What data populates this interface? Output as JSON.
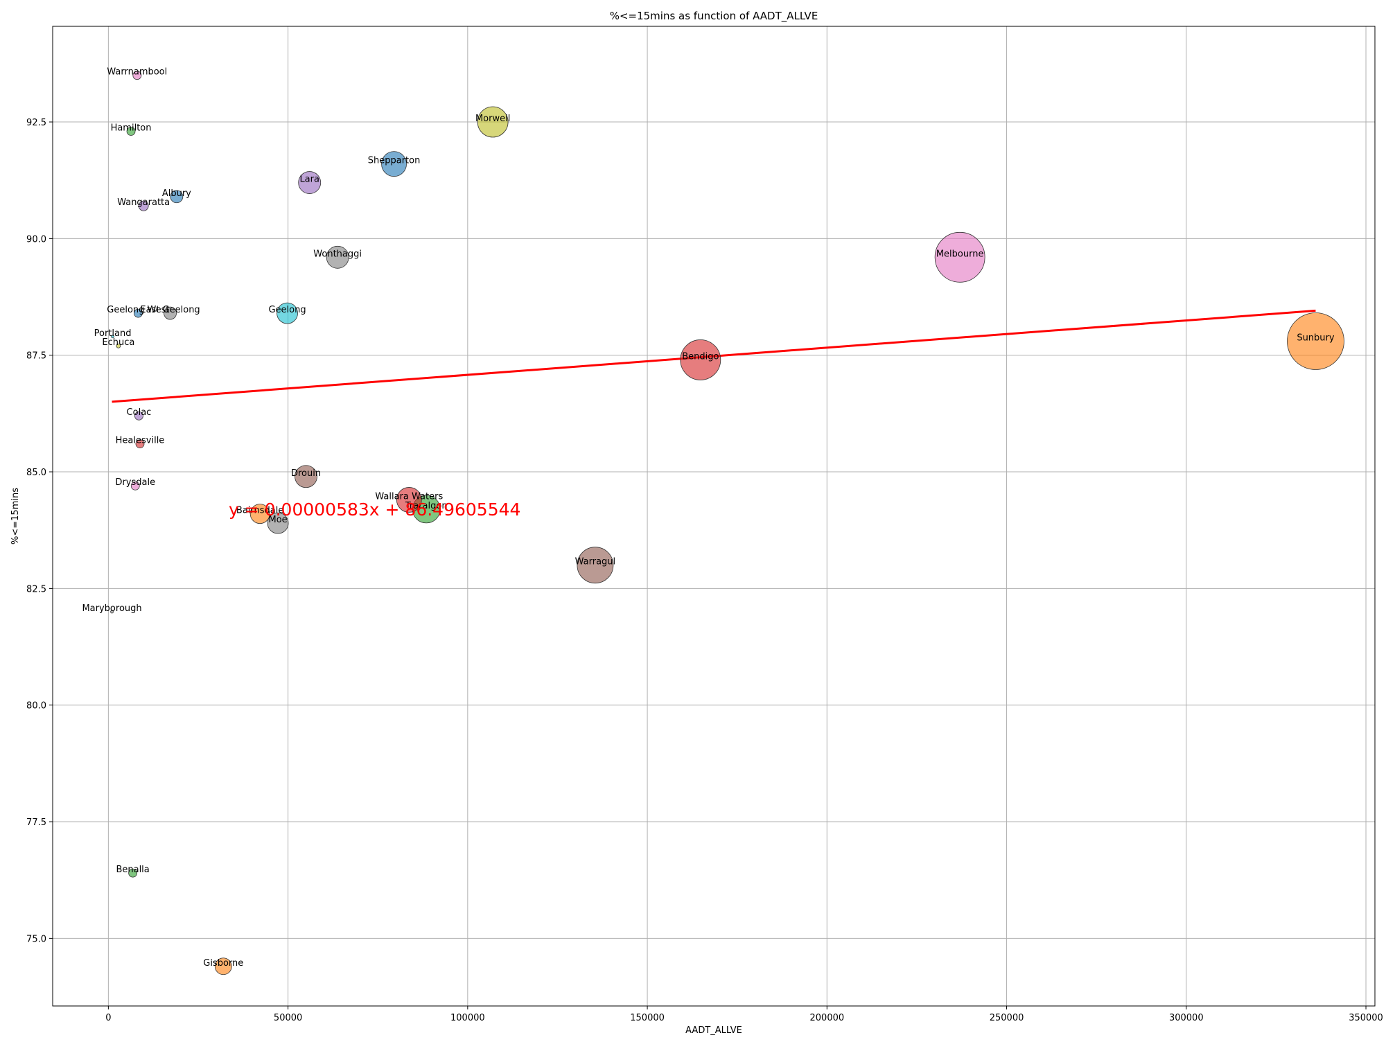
{
  "chart_data": {
    "type": "scatter",
    "title": "%<=15mins as function of AADT_ALLVE",
    "xlabel": "AADT_ALLVE",
    "ylabel": "%<=15mins",
    "xlim": [
      -15500,
      352500
    ],
    "ylim": [
      73.55,
      94.55
    ],
    "xticks": [
      0,
      50000,
      100000,
      150000,
      200000,
      250000,
      300000,
      350000
    ],
    "yticks": [
      75.0,
      77.5,
      80.0,
      82.5,
      85.0,
      87.5,
      90.0,
      92.5
    ],
    "grid": true,
    "points": [
      {
        "label": "Warrnambool",
        "x": 8000,
        "y": 93.5,
        "size": 6,
        "color": "#e377c2"
      },
      {
        "label": "Hamilton",
        "x": 6300,
        "y": 92.3,
        "size": 6,
        "color": "#2ca02c"
      },
      {
        "label": "Morwell",
        "x": 107000,
        "y": 92.5,
        "size": 22,
        "color": "#bcbd22"
      },
      {
        "label": "Shepparton",
        "x": 79500,
        "y": 91.6,
        "size": 18,
        "color": "#1f77b4"
      },
      {
        "label": "Lara",
        "x": 56000,
        "y": 91.2,
        "size": 16,
        "color": "#9467bd"
      },
      {
        "label": "Albury",
        "x": 19000,
        "y": 90.9,
        "size": 9,
        "color": "#1f77b4"
      },
      {
        "label": "Wangaratta",
        "x": 9800,
        "y": 90.7,
        "size": 7,
        "color": "#9467bd"
      },
      {
        "label": "Wonthaggi",
        "x": 63800,
        "y": 89.6,
        "size": 16,
        "color": "#7f7f7f"
      },
      {
        "label": "Melbourne",
        "x": 237000,
        "y": 89.6,
        "size": 36,
        "color": "#e377c2"
      },
      {
        "label": "Geelong West",
        "x": 8300,
        "y": 88.4,
        "size": 6,
        "color": "#1f77b4"
      },
      {
        "label": "East Geelong",
        "x": 17200,
        "y": 88.4,
        "size": 9,
        "color": "#7f7f7f"
      },
      {
        "label": "Geelong",
        "x": 49800,
        "y": 88.4,
        "size": 15,
        "color": "#17becf"
      },
      {
        "label": "Portland",
        "x": 1200,
        "y": 87.9,
        "size": 2,
        "color": "#17becf"
      },
      {
        "label": "Echuca",
        "x": 2800,
        "y": 87.7,
        "size": 3,
        "color": "#bcbd22"
      },
      {
        "label": "Sunbury",
        "x": 336000,
        "y": 87.8,
        "size": 41,
        "color": "#ff7f0e"
      },
      {
        "label": "Bendigo",
        "x": 164800,
        "y": 87.4,
        "size": 29,
        "color": "#d62728"
      },
      {
        "label": "Colac",
        "x": 8500,
        "y": 86.2,
        "size": 6,
        "color": "#9467bd"
      },
      {
        "label": "Healesville",
        "x": 8800,
        "y": 85.6,
        "size": 6,
        "color": "#d62728"
      },
      {
        "label": "Drouin",
        "x": 55000,
        "y": 84.9,
        "size": 16,
        "color": "#8c564b"
      },
      {
        "label": "Drysdale",
        "x": 7500,
        "y": 84.7,
        "size": 6,
        "color": "#e377c2"
      },
      {
        "label": "Wallara Waters",
        "x": 83700,
        "y": 84.4,
        "size": 18,
        "color": "#d62728"
      },
      {
        "label": "Traralgon",
        "x": 88500,
        "y": 84.2,
        "size": 20,
        "color": "#2ca02c"
      },
      {
        "label": "Bairnsdale",
        "x": 42200,
        "y": 84.1,
        "size": 14,
        "color": "#ff7f0e"
      },
      {
        "label": "Moe",
        "x": 47200,
        "y": 83.9,
        "size": 15,
        "color": "#7f7f7f"
      },
      {
        "label": "Warragul",
        "x": 135500,
        "y": 83.0,
        "size": 26,
        "color": "#8c564b"
      },
      {
        "label": "Maryborough",
        "x": 1000,
        "y": 82.0,
        "size": 2,
        "color": "#7f7f7f"
      },
      {
        "label": "Benalla",
        "x": 6800,
        "y": 76.4,
        "size": 6,
        "color": "#2ca02c"
      },
      {
        "label": "Gisborne",
        "x": 32000,
        "y": 74.4,
        "size": 12,
        "color": "#ff7f0e"
      }
    ],
    "trendline": {
      "equation": "y = 0.00000583x + 86.49605544",
      "slope": 5.83e-06,
      "intercept": 86.49605544,
      "x_start": 1000,
      "x_end": 336000,
      "color": "#ff0000"
    },
    "equation_anchor": {
      "x": 33500,
      "y": 84.2
    }
  }
}
